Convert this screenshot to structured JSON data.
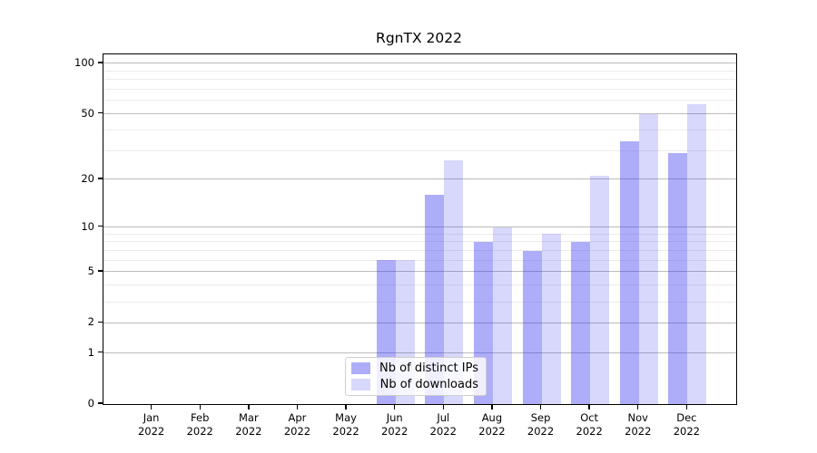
{
  "chart_data": {
    "type": "bar",
    "title": "RgnTX 2022",
    "categories": [
      "Jan",
      "Feb",
      "Mar",
      "Apr",
      "May",
      "Jun",
      "Jul",
      "Aug",
      "Sep",
      "Oct",
      "Nov",
      "Dec"
    ],
    "x_tick_year": "2022",
    "series": [
      {
        "name": "Nb of distinct IPs",
        "color": "rgba(50,50,240,0.40)",
        "values": [
          0,
          0,
          0,
          0,
          0,
          6,
          16,
          8,
          7,
          8,
          34,
          29
        ]
      },
      {
        "name": "Nb of downloads",
        "color": "rgba(50,50,240,0.19)",
        "values": [
          0,
          0,
          0,
          0,
          0,
          6,
          26,
          10,
          9,
          21,
          50,
          57
        ]
      }
    ],
    "y_scale": "log1p",
    "y_ticks": [
      0,
      1,
      2,
      5,
      10,
      20,
      50,
      100
    ],
    "y_minor_ticks": [
      3,
      4,
      6,
      7,
      8,
      9,
      30,
      40,
      60,
      70,
      80,
      90
    ],
    "ylim": [
      0,
      113
    ],
    "xlabel": "",
    "ylabel": "",
    "grid": true,
    "legend_position": "lower center-left inside axes"
  },
  "colors": {
    "bar_ips": "rgba(50,50,240,0.40)",
    "bar_downloads": "rgba(50,50,240,0.19)",
    "grid_major": "#bbbbbb",
    "grid_minor": "#ebebeb",
    "axis": "#000000",
    "background": "#ffffff"
  }
}
